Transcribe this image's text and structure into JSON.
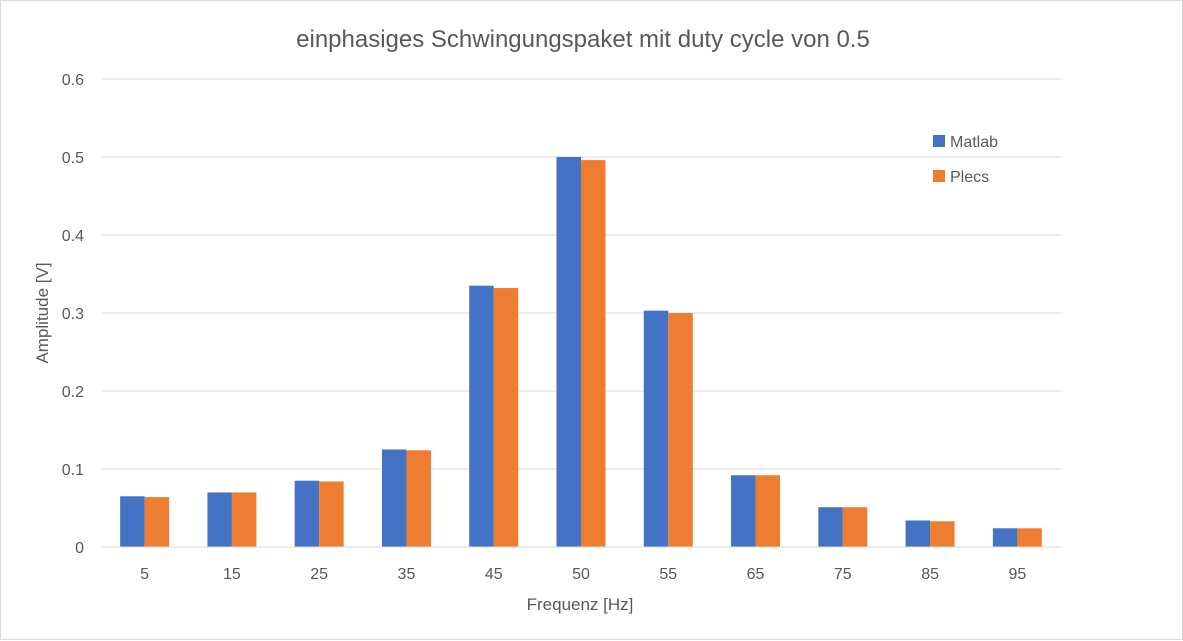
{
  "chart_data": {
    "type": "bar",
    "title": "einphasiges Schwingungspaket mit duty cycle von 0.5",
    "xlabel": "Frequenz [Hz]",
    "ylabel": "Amplitude [V]",
    "categories": [
      "5",
      "15",
      "25",
      "35",
      "45",
      "50",
      "55",
      "65",
      "75",
      "85",
      "95"
    ],
    "ylim": [
      0,
      0.6
    ],
    "yticks": [
      "0",
      "0.1",
      "0.2",
      "0.3",
      "0.4",
      "0.5",
      "0.6"
    ],
    "grid": true,
    "legend_position": "right",
    "series": [
      {
        "name": "Matlab",
        "color": "#4472c4",
        "values": [
          0.065,
          0.07,
          0.085,
          0.125,
          0.335,
          0.5,
          0.303,
          0.092,
          0.051,
          0.034,
          0.024
        ]
      },
      {
        "name": "Plecs",
        "color": "#ed7d31",
        "values": [
          0.064,
          0.07,
          0.084,
          0.124,
          0.332,
          0.496,
          0.3,
          0.092,
          0.051,
          0.033,
          0.024
        ]
      }
    ]
  }
}
